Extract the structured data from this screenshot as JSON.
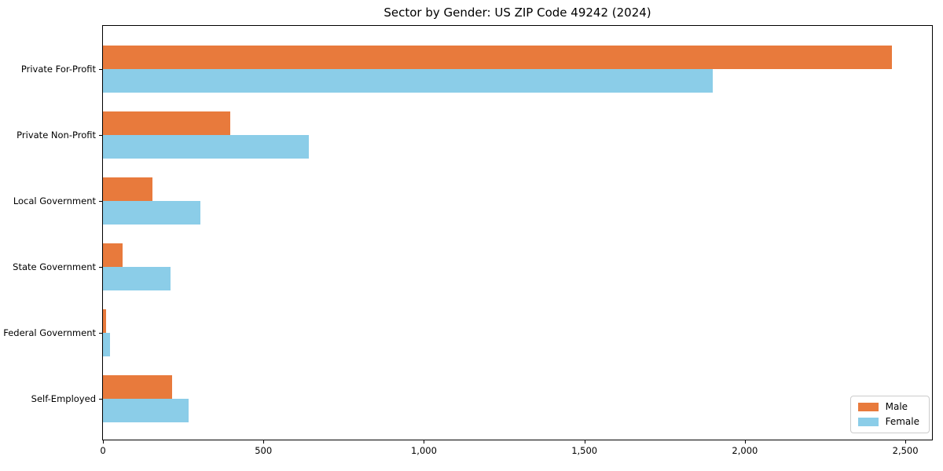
{
  "title": "Sector by Gender: US ZIP Code 49242 (2024)",
  "chart_data": {
    "type": "bar",
    "orientation": "horizontal",
    "title": "Sector by Gender: US ZIP Code 49242 (2024)",
    "xlabel": "",
    "ylabel": "",
    "categories": [
      "Private For-Profit",
      "Private Non-Profit",
      "Local Government",
      "State Government",
      "Federal Government",
      "Self-Employed"
    ],
    "series": [
      {
        "name": "Male",
        "color": "#e87a3c",
        "values": [
          2458,
          396,
          154,
          62,
          9,
          216
        ]
      },
      {
        "name": "Female",
        "color": "#8bcde8",
        "values": [
          1900,
          641,
          304,
          211,
          21,
          267
        ]
      }
    ],
    "xlim": [
      0,
      2583
    ],
    "xticks": [
      0,
      500,
      1000,
      1500,
      2000,
      2500
    ],
    "xtick_labels": [
      "0",
      "500",
      "1,000",
      "1,500",
      "2,000",
      "2,500"
    ],
    "grid": false,
    "legend_position": "lower right",
    "axis_color": "#000000",
    "background_color": "#ffffff"
  }
}
